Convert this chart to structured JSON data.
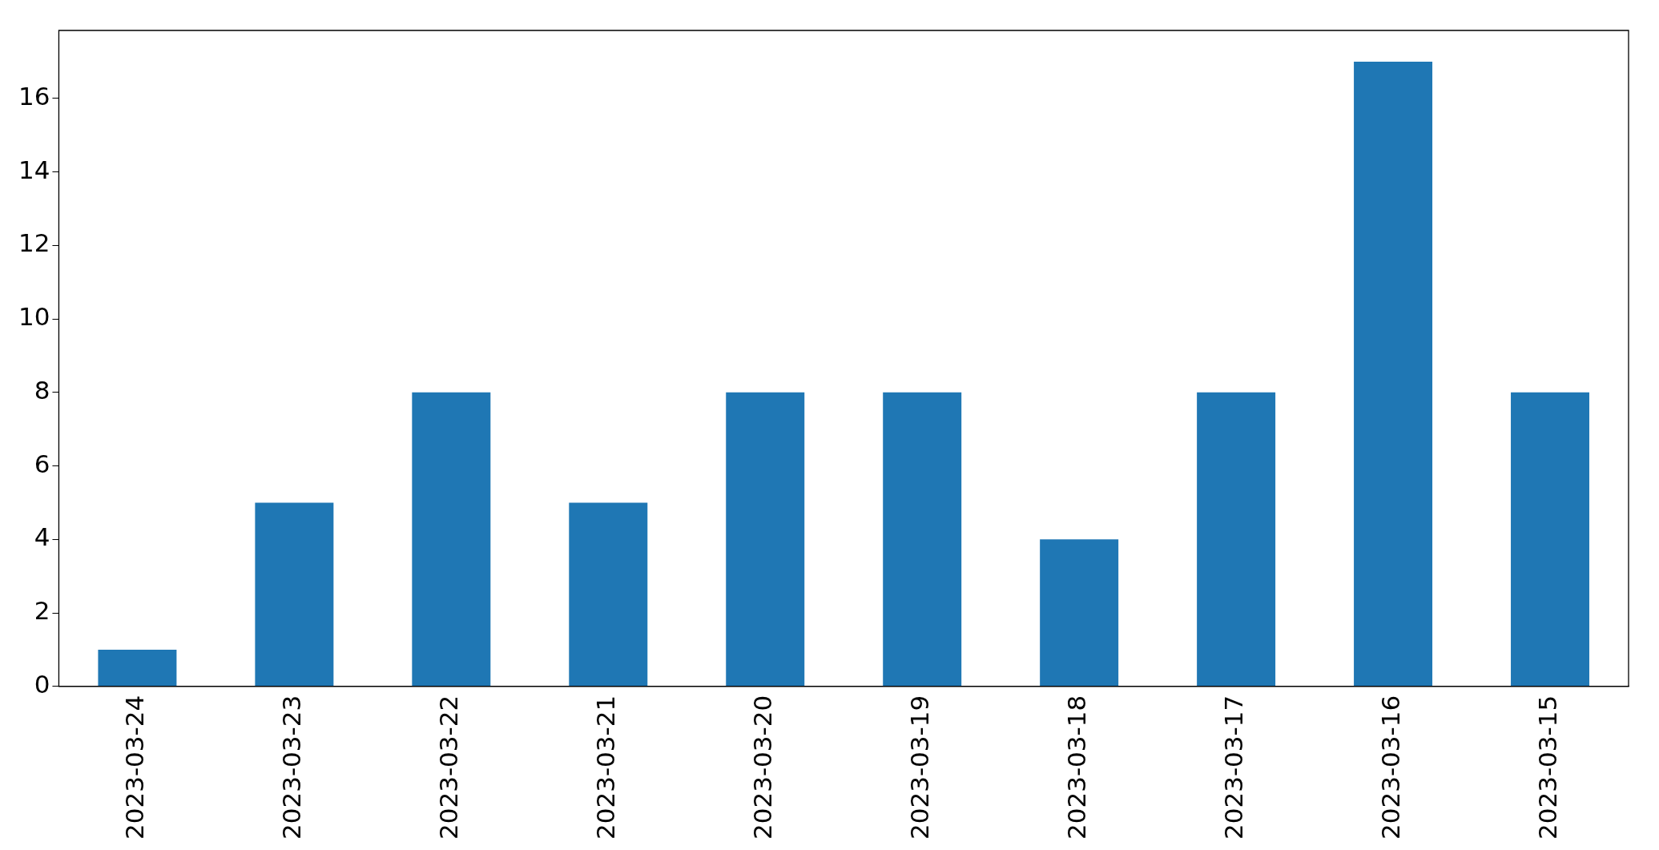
{
  "chart_data": {
    "type": "bar",
    "categories": [
      "2023-03-24",
      "2023-03-23",
      "2023-03-22",
      "2023-03-21",
      "2023-03-20",
      "2023-03-19",
      "2023-03-18",
      "2023-03-17",
      "2023-03-16",
      "2023-03-15"
    ],
    "values": [
      1,
      5,
      8,
      5,
      8,
      8,
      4,
      8,
      17,
      8
    ],
    "color": "#1f77b4",
    "ylim": [
      0,
      17.85
    ],
    "yticks": [
      0,
      2,
      4,
      6,
      8,
      10,
      12,
      14,
      16
    ],
    "grid": false,
    "legend": false
  }
}
